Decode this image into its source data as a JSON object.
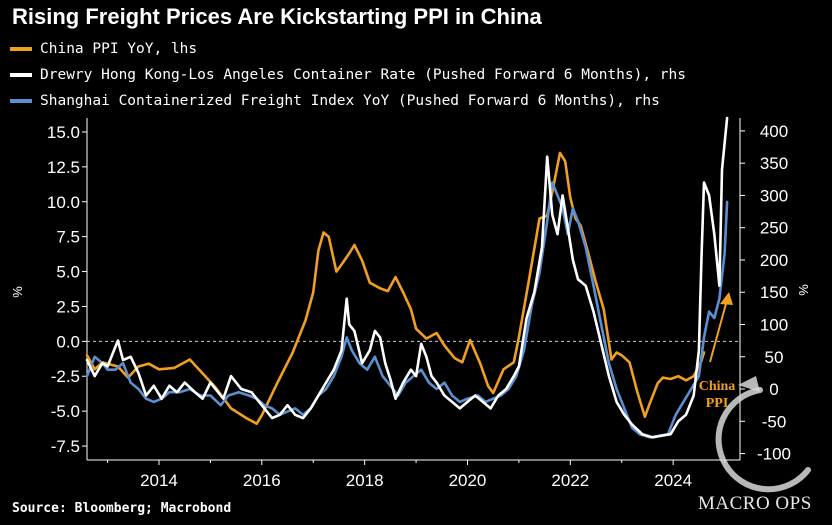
{
  "chart_data": {
    "type": "line",
    "title": "Rising Freight Prices Are Kickstarting PPI in China",
    "source": "Source: Bloomberg; Macrobond",
    "ylabel_left": "%",
    "ylabel_right": "%",
    "ylim_left": [
      -8.5,
      16.0
    ],
    "ylim_right": [
      -110,
      420
    ],
    "xlim": [
      2012.6,
      2025.3
    ],
    "x_ticks": [
      2014,
      2016,
      2018,
      2020,
      2022,
      2024
    ],
    "y_ticks_left": [
      "15.0",
      "12.5",
      "10.0",
      "7.5",
      "5.0",
      "2.5",
      "0.0",
      "-2.5",
      "-5.0",
      "-7.5"
    ],
    "y_ticks_right": [
      "400",
      "350",
      "300",
      "250",
      "200",
      "150",
      "100",
      "50",
      "0",
      "-50",
      "-100"
    ],
    "annotation": "China PPI",
    "watermark": "MACRO OPS",
    "series": [
      {
        "name": "China PPI YoY, lhs",
        "axis": "left",
        "color": "#f0a020",
        "points": [
          [
            2012.6,
            -1.0
          ],
          [
            2012.75,
            -2.0
          ],
          [
            2012.9,
            -1.5
          ],
          [
            2013.0,
            -1.6
          ],
          [
            2013.2,
            -1.8
          ],
          [
            2013.4,
            -2.6
          ],
          [
            2013.6,
            -1.8
          ],
          [
            2013.8,
            -1.6
          ],
          [
            2014.0,
            -2.0
          ],
          [
            2014.3,
            -1.9
          ],
          [
            2014.6,
            -1.3
          ],
          [
            2014.85,
            -2.3
          ],
          [
            2015.1,
            -3.3
          ],
          [
            2015.4,
            -4.8
          ],
          [
            2015.7,
            -5.5
          ],
          [
            2015.9,
            -5.9
          ],
          [
            2016.0,
            -5.3
          ],
          [
            2016.3,
            -3.0
          ],
          [
            2016.6,
            -0.8
          ],
          [
            2016.85,
            1.5
          ],
          [
            2017.0,
            3.5
          ],
          [
            2017.1,
            6.5
          ],
          [
            2017.2,
            7.8
          ],
          [
            2017.3,
            7.5
          ],
          [
            2017.45,
            5.0
          ],
          [
            2017.55,
            5.5
          ],
          [
            2017.7,
            6.3
          ],
          [
            2017.8,
            6.9
          ],
          [
            2017.95,
            5.8
          ],
          [
            2018.1,
            4.2
          ],
          [
            2018.3,
            3.8
          ],
          [
            2018.45,
            3.6
          ],
          [
            2018.6,
            4.6
          ],
          [
            2018.75,
            3.5
          ],
          [
            2018.9,
            2.3
          ],
          [
            2019.0,
            0.9
          ],
          [
            2019.2,
            0.2
          ],
          [
            2019.4,
            0.6
          ],
          [
            2019.55,
            -0.3
          ],
          [
            2019.75,
            -1.2
          ],
          [
            2019.9,
            -1.5
          ],
          [
            2020.05,
            0.1
          ],
          [
            2020.25,
            -1.6
          ],
          [
            2020.4,
            -3.2
          ],
          [
            2020.5,
            -3.7
          ],
          [
            2020.7,
            -2.0
          ],
          [
            2020.9,
            -1.5
          ],
          [
            2021.0,
            0.3
          ],
          [
            2021.2,
            4.5
          ],
          [
            2021.4,
            8.8
          ],
          [
            2021.55,
            9.0
          ],
          [
            2021.65,
            10.7
          ],
          [
            2021.8,
            13.5
          ],
          [
            2021.9,
            12.9
          ],
          [
            2022.0,
            10.3
          ],
          [
            2022.1,
            8.8
          ],
          [
            2022.2,
            8.3
          ],
          [
            2022.35,
            6.3
          ],
          [
            2022.5,
            4.2
          ],
          [
            2022.65,
            2.3
          ],
          [
            2022.8,
            -1.3
          ],
          [
            2022.9,
            -0.8
          ],
          [
            2023.0,
            -1.0
          ],
          [
            2023.15,
            -1.5
          ],
          [
            2023.3,
            -3.6
          ],
          [
            2023.45,
            -5.4
          ],
          [
            2023.55,
            -4.4
          ],
          [
            2023.7,
            -3.0
          ],
          [
            2023.8,
            -2.6
          ],
          [
            2023.95,
            -2.7
          ],
          [
            2024.1,
            -2.5
          ],
          [
            2024.25,
            -2.8
          ],
          [
            2024.4,
            -2.5
          ],
          [
            2024.55,
            -1.4
          ],
          [
            2024.6,
            -0.8
          ]
        ]
      },
      {
        "name": "Drewry Hong Kong-Los Angeles Container Rate (Pushed Forward 6 Months), rhs",
        "axis": "right",
        "color": "#ffffff",
        "points": [
          [
            2012.6,
            45
          ],
          [
            2012.75,
            20
          ],
          [
            2012.9,
            40
          ],
          [
            2013.0,
            35
          ],
          [
            2013.1,
            55
          ],
          [
            2013.2,
            75
          ],
          [
            2013.3,
            45
          ],
          [
            2013.45,
            50
          ],
          [
            2013.6,
            25
          ],
          [
            2013.75,
            -10
          ],
          [
            2013.9,
            5
          ],
          [
            2014.05,
            -15
          ],
          [
            2014.2,
            5
          ],
          [
            2014.35,
            -5
          ],
          [
            2014.5,
            10
          ],
          [
            2014.7,
            -5
          ],
          [
            2014.85,
            -15
          ],
          [
            2015.0,
            10
          ],
          [
            2015.1,
            0
          ],
          [
            2015.25,
            -15
          ],
          [
            2015.4,
            20
          ],
          [
            2015.6,
            0
          ],
          [
            2015.8,
            -5
          ],
          [
            2015.95,
            -20
          ],
          [
            2016.05,
            -30
          ],
          [
            2016.2,
            -45
          ],
          [
            2016.35,
            -40
          ],
          [
            2016.5,
            -25
          ],
          [
            2016.65,
            -40
          ],
          [
            2016.8,
            -45
          ],
          [
            2016.95,
            -30
          ],
          [
            2017.1,
            -10
          ],
          [
            2017.25,
            10
          ],
          [
            2017.4,
            30
          ],
          [
            2017.55,
            60
          ],
          [
            2017.65,
            140
          ],
          [
            2017.7,
            100
          ],
          [
            2017.8,
            90
          ],
          [
            2017.95,
            40
          ],
          [
            2018.1,
            60
          ],
          [
            2018.2,
            90
          ],
          [
            2018.3,
            80
          ],
          [
            2018.4,
            40
          ],
          [
            2018.5,
            15
          ],
          [
            2018.6,
            -15
          ],
          [
            2018.75,
            10
          ],
          [
            2018.9,
            30
          ],
          [
            2019.0,
            20
          ],
          [
            2019.1,
            70
          ],
          [
            2019.2,
            50
          ],
          [
            2019.3,
            20
          ],
          [
            2019.4,
            10
          ],
          [
            2019.55,
            -10
          ],
          [
            2019.7,
            -20
          ],
          [
            2019.85,
            -30
          ],
          [
            2020.0,
            -20
          ],
          [
            2020.15,
            -10
          ],
          [
            2020.3,
            -20
          ],
          [
            2020.45,
            -30
          ],
          [
            2020.6,
            -10
          ],
          [
            2020.75,
            0
          ],
          [
            2020.9,
            20
          ],
          [
            2021.0,
            35
          ],
          [
            2021.15,
            110
          ],
          [
            2021.3,
            150
          ],
          [
            2021.45,
            220
          ],
          [
            2021.55,
            360
          ],
          [
            2021.65,
            270
          ],
          [
            2021.75,
            240
          ],
          [
            2021.85,
            300
          ],
          [
            2021.95,
            250
          ],
          [
            2022.05,
            200
          ],
          [
            2022.15,
            170
          ],
          [
            2022.3,
            160
          ],
          [
            2022.45,
            120
          ],
          [
            2022.6,
            70
          ],
          [
            2022.75,
            20
          ],
          [
            2022.9,
            -20
          ],
          [
            2023.05,
            -40
          ],
          [
            2023.2,
            -55
          ],
          [
            2023.4,
            -70
          ],
          [
            2023.6,
            -75
          ],
          [
            2023.8,
            -72
          ],
          [
            2023.95,
            -70
          ],
          [
            2024.1,
            -50
          ],
          [
            2024.25,
            -40
          ],
          [
            2024.4,
            -10
          ],
          [
            2024.5,
            60
          ],
          [
            2024.55,
            200
          ],
          [
            2024.6,
            320
          ],
          [
            2024.7,
            300
          ],
          [
            2024.8,
            240
          ],
          [
            2024.9,
            160
          ],
          [
            2024.95,
            340
          ],
          [
            2025.05,
            420
          ]
        ]
      },
      {
        "name": "Shanghai Containerized Freight Index YoY (Pushed Forward 6 Months), rhs",
        "axis": "right",
        "color": "#5b8fd0",
        "points": [
          [
            2012.6,
            20
          ],
          [
            2012.75,
            50
          ],
          [
            2012.9,
            40
          ],
          [
            2013.0,
            30
          ],
          [
            2013.15,
            30
          ],
          [
            2013.3,
            40
          ],
          [
            2013.45,
            10
          ],
          [
            2013.6,
            0
          ],
          [
            2013.75,
            -15
          ],
          [
            2013.9,
            -20
          ],
          [
            2014.05,
            -15
          ],
          [
            2014.2,
            -5
          ],
          [
            2014.4,
            -5
          ],
          [
            2014.6,
            0
          ],
          [
            2014.8,
            -10
          ],
          [
            2015.0,
            -10
          ],
          [
            2015.2,
            -25
          ],
          [
            2015.35,
            -10
          ],
          [
            2015.55,
            -5
          ],
          [
            2015.75,
            -10
          ],
          [
            2015.9,
            -15
          ],
          [
            2016.05,
            -25
          ],
          [
            2016.2,
            -30
          ],
          [
            2016.35,
            -40
          ],
          [
            2016.5,
            -35
          ],
          [
            2016.65,
            -30
          ],
          [
            2016.8,
            -40
          ],
          [
            2016.95,
            -30
          ],
          [
            2017.1,
            -10
          ],
          [
            2017.25,
            0
          ],
          [
            2017.4,
            20
          ],
          [
            2017.55,
            50
          ],
          [
            2017.65,
            80
          ],
          [
            2017.75,
            60
          ],
          [
            2017.9,
            40
          ],
          [
            2018.05,
            30
          ],
          [
            2018.2,
            50
          ],
          [
            2018.35,
            20
          ],
          [
            2018.5,
            5
          ],
          [
            2018.65,
            -10
          ],
          [
            2018.8,
            10
          ],
          [
            2018.95,
            20
          ],
          [
            2019.1,
            30
          ],
          [
            2019.25,
            10
          ],
          [
            2019.4,
            0
          ],
          [
            2019.55,
            10
          ],
          [
            2019.7,
            -10
          ],
          [
            2019.85,
            -20
          ],
          [
            2020.0,
            -15
          ],
          [
            2020.2,
            -10
          ],
          [
            2020.35,
            -20
          ],
          [
            2020.5,
            -15
          ],
          [
            2020.65,
            -10
          ],
          [
            2020.8,
            0
          ],
          [
            2020.95,
            20
          ],
          [
            2021.1,
            60
          ],
          [
            2021.25,
            130
          ],
          [
            2021.4,
            180
          ],
          [
            2021.55,
            260
          ],
          [
            2021.65,
            320
          ],
          [
            2021.75,
            300
          ],
          [
            2021.85,
            280
          ],
          [
            2021.95,
            240
          ],
          [
            2022.05,
            280
          ],
          [
            2022.15,
            260
          ],
          [
            2022.3,
            220
          ],
          [
            2022.45,
            160
          ],
          [
            2022.6,
            100
          ],
          [
            2022.75,
            40
          ],
          [
            2022.9,
            0
          ],
          [
            2023.05,
            -30
          ],
          [
            2023.2,
            -60
          ],
          [
            2023.35,
            -70
          ],
          [
            2023.55,
            -75
          ],
          [
            2023.75,
            -72
          ],
          [
            2023.9,
            -70
          ],
          [
            2024.05,
            -40
          ],
          [
            2024.2,
            -20
          ],
          [
            2024.35,
            0
          ],
          [
            2024.5,
            20
          ],
          [
            2024.6,
            80
          ],
          [
            2024.7,
            120
          ],
          [
            2024.8,
            110
          ],
          [
            2024.9,
            140
          ],
          [
            2025.0,
            210
          ],
          [
            2025.05,
            290
          ]
        ]
      }
    ]
  },
  "colors": {
    "background": "#000000",
    "axis": "#ffffff",
    "zero_line": "#cccccc"
  },
  "icons": {
    "arrow": "up-right-arrow-icon",
    "logo": "macro-ops-logo-icon"
  }
}
